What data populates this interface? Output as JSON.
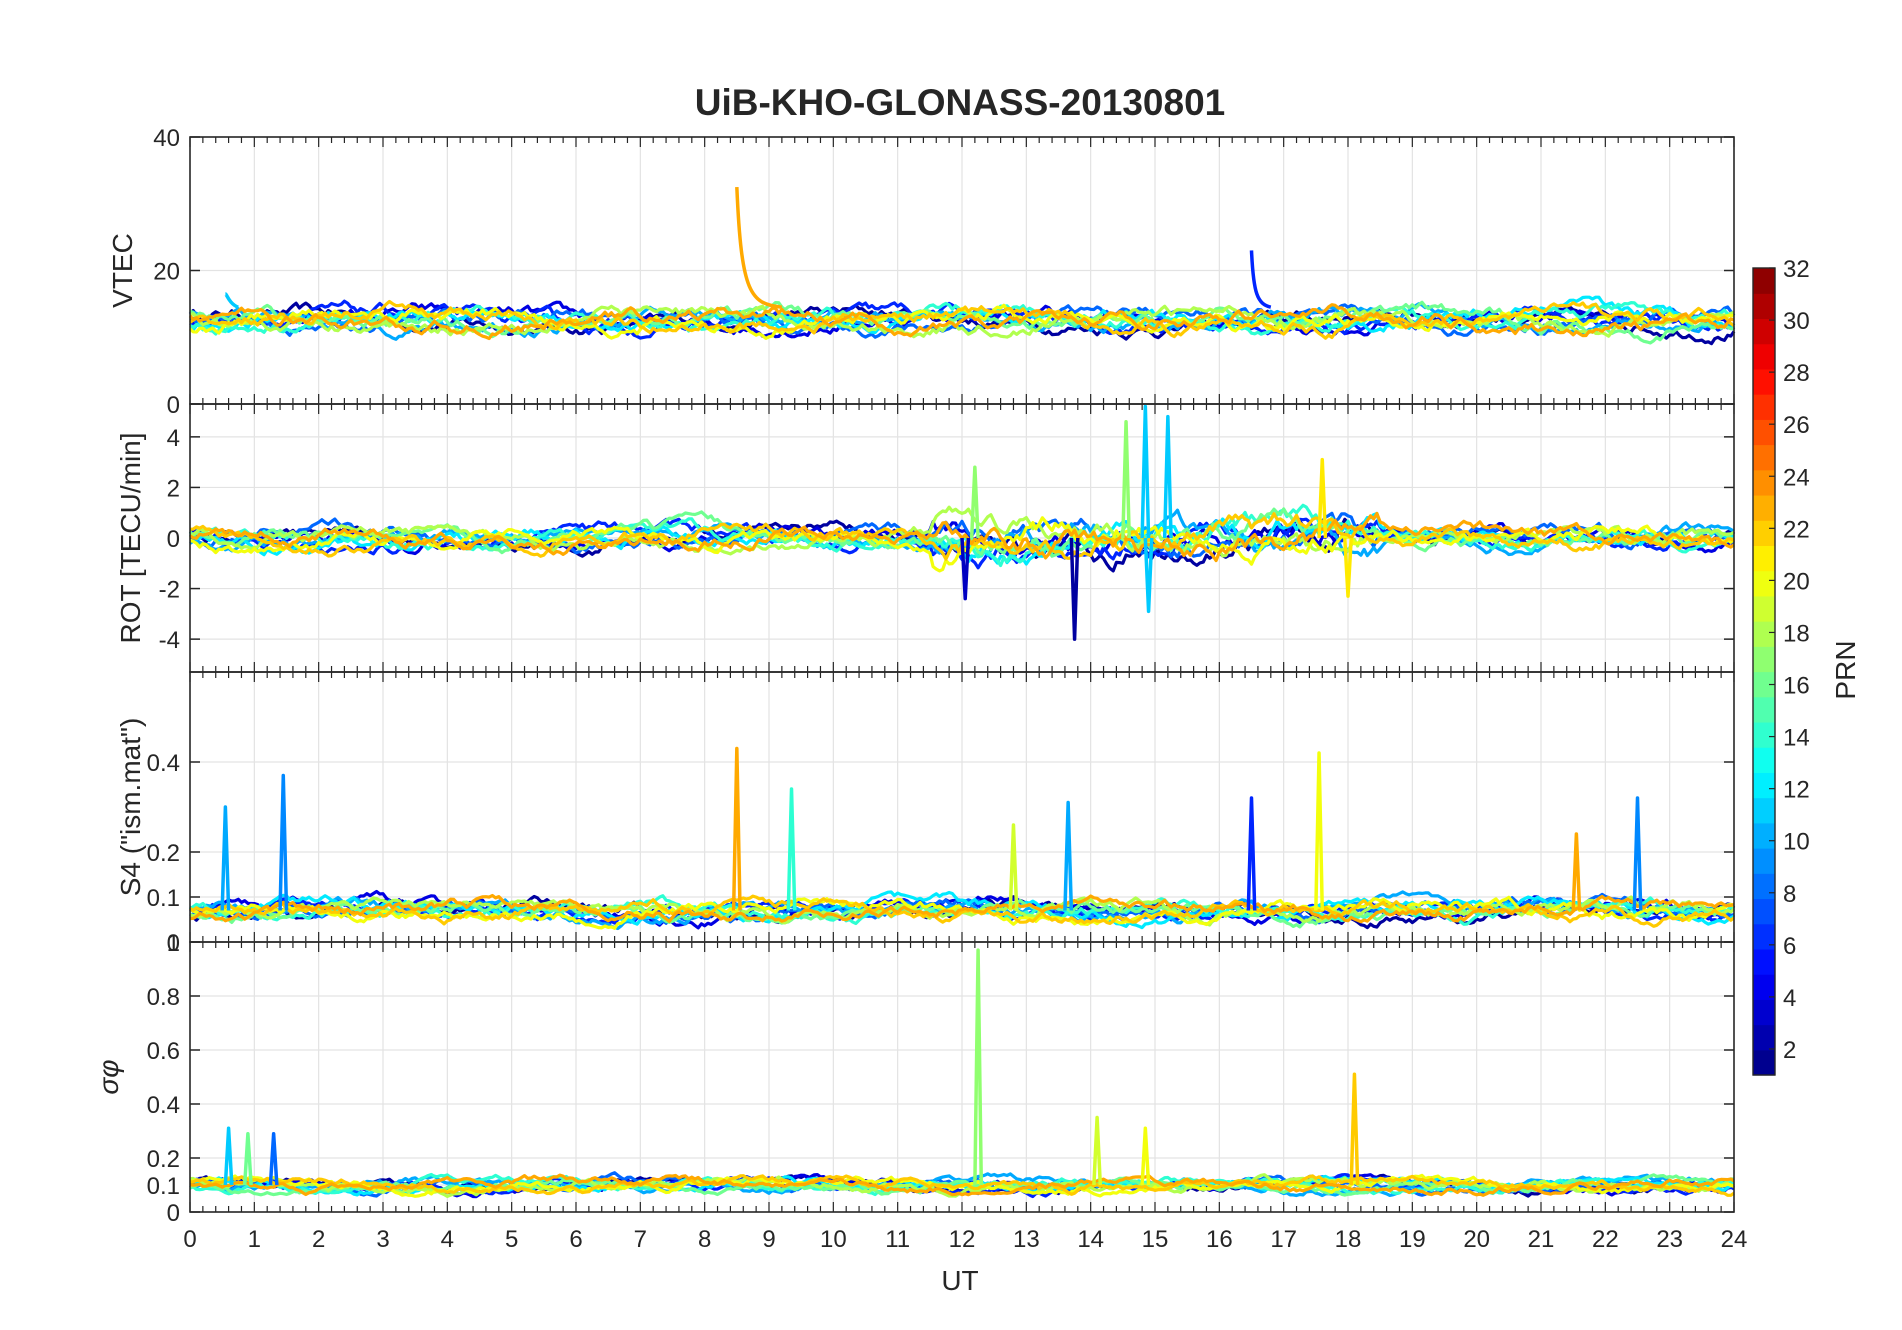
{
  "chart_data": {
    "type": "line",
    "title": "UiB-KHO-GLONASS-20130801",
    "xlabel": "UT",
    "xlim": [
      0,
      24
    ],
    "xticks": [
      0,
      1,
      2,
      3,
      4,
      5,
      6,
      7,
      8,
      9,
      10,
      11,
      12,
      13,
      14,
      15,
      16,
      17,
      18,
      19,
      20,
      21,
      22,
      23,
      24
    ],
    "grid": true,
    "panels": [
      {
        "id": "vtec",
        "ylabel": "VTEC",
        "ylim": [
          0,
          40
        ],
        "yticks": [
          0,
          20,
          40
        ],
        "ytick_labels": [
          "0",
          "20",
          "40"
        ],
        "baseline": 12.5,
        "noise": 2.0,
        "base_min": 8,
        "base_max": 16,
        "spikes": [
          {
            "x": 8.5,
            "peak": 32.5,
            "prn": 23,
            "decay": 0.7
          },
          {
            "x": 16.5,
            "peak": 23.0,
            "prn": 6,
            "decay": 0.3
          },
          {
            "x": 0.55,
            "peak": 16.5,
            "prn": 11,
            "decay": 0.2
          }
        ]
      },
      {
        "id": "rot",
        "ylabel": "ROT [TECU/min]",
        "ylim": [
          -5.3,
          5.3
        ],
        "yticks": [
          -4,
          -2,
          0,
          2,
          4
        ],
        "ytick_labels": [
          "-4",
          "-2",
          "0",
          "2",
          "4"
        ],
        "baseline": 0,
        "noise": 0.5,
        "base_min": -1.3,
        "base_max": 1.3,
        "spikes": [
          {
            "x": 14.85,
            "peak": 5.2,
            "prn": 11
          },
          {
            "x": 15.2,
            "peak": 4.8,
            "prn": 11
          },
          {
            "x": 14.55,
            "peak": 4.6,
            "prn": 17
          },
          {
            "x": 13.75,
            "peak": -4.0,
            "prn": 2
          },
          {
            "x": 12.2,
            "peak": 2.8,
            "prn": 17
          },
          {
            "x": 17.6,
            "peak": 3.1,
            "prn": 21
          },
          {
            "x": 14.9,
            "peak": -2.9,
            "prn": 11
          },
          {
            "x": 12.05,
            "peak": -2.4,
            "prn": 3
          },
          {
            "x": 18.0,
            "peak": -2.3,
            "prn": 21
          }
        ]
      },
      {
        "id": "s4",
        "ylabel": "S4 (\"ism.mat\")",
        "ylim": [
          0,
          0.6
        ],
        "yticks": [
          0,
          0.1,
          0.2,
          0.4
        ],
        "ytick_labels": [
          "0",
          "0.1",
          "0.2",
          "0.4"
        ],
        "baseline": 0.07,
        "noise": 0.025,
        "base_min": 0.03,
        "base_max": 0.13,
        "spikes": [
          {
            "x": 8.5,
            "peak": 0.43,
            "prn": 23
          },
          {
            "x": 17.55,
            "peak": 0.42,
            "prn": 20
          },
          {
            "x": 1.45,
            "peak": 0.37,
            "prn": 9
          },
          {
            "x": 9.35,
            "peak": 0.34,
            "prn": 14
          },
          {
            "x": 0.55,
            "peak": 0.3,
            "prn": 10
          },
          {
            "x": 16.5,
            "peak": 0.32,
            "prn": 6
          },
          {
            "x": 22.5,
            "peak": 0.32,
            "prn": 9
          },
          {
            "x": 13.65,
            "peak": 0.31,
            "prn": 10
          },
          {
            "x": 12.8,
            "peak": 0.26,
            "prn": 19
          },
          {
            "x": 21.55,
            "peak": 0.24,
            "prn": 23
          }
        ]
      },
      {
        "id": "sigma",
        "ylabel": "σφ",
        "ylim": [
          0,
          1
        ],
        "yticks": [
          0,
          0.1,
          0.2,
          0.4,
          0.6,
          0.8,
          1
        ],
        "ytick_labels": [
          "0",
          "0.1",
          "0.2",
          "0.4",
          "0.6",
          "0.8",
          "1"
        ],
        "baseline": 0.1,
        "noise": 0.03,
        "base_min": 0.05,
        "base_max": 0.2,
        "spikes": [
          {
            "x": 12.25,
            "peak": 0.97,
            "prn": 17
          },
          {
            "x": 18.1,
            "peak": 0.51,
            "prn": 22
          },
          {
            "x": 14.1,
            "peak": 0.35,
            "prn": 19
          },
          {
            "x": 14.85,
            "peak": 0.31,
            "prn": 20
          },
          {
            "x": 0.6,
            "peak": 0.31,
            "prn": 11
          },
          {
            "x": 1.3,
            "peak": 0.29,
            "prn": 8
          },
          {
            "x": 0.9,
            "peak": 0.29,
            "prn": 16
          }
        ]
      }
    ],
    "series_prns": [
      2,
      4,
      6,
      8,
      10,
      12,
      14,
      16,
      18,
      20,
      22,
      23
    ],
    "colorbar": {
      "label": "PRN",
      "range": [
        1,
        32
      ],
      "ticks": [
        2,
        4,
        6,
        8,
        10,
        12,
        14,
        16,
        18,
        20,
        22,
        24,
        26,
        28,
        30,
        32
      ],
      "colormap": "jet"
    }
  }
}
